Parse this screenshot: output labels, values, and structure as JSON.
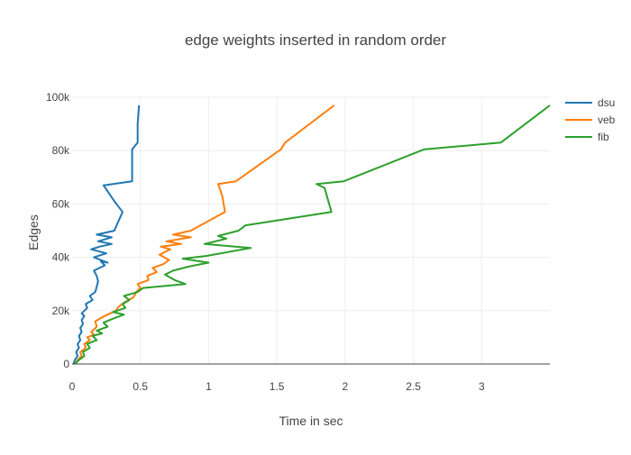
{
  "chart_data": {
    "type": "line",
    "title": "edge weights inserted in random order",
    "xlabel": "Time in sec",
    "ylabel": "Edges",
    "xlim": [
      0,
      3.5
    ],
    "ylim": [
      0,
      100000
    ],
    "x_ticks": [
      {
        "value": 0,
        "label": "0"
      },
      {
        "value": 0.5,
        "label": "0.5"
      },
      {
        "value": 1,
        "label": "1"
      },
      {
        "value": 1.5,
        "label": "1.5"
      },
      {
        "value": 2,
        "label": "2"
      },
      {
        "value": 2.5,
        "label": "2.5"
      },
      {
        "value": 3,
        "label": "3"
      }
    ],
    "y_ticks": [
      {
        "value": 0,
        "label": "0"
      },
      {
        "value": 20000,
        "label": "20k"
      },
      {
        "value": 40000,
        "label": "40k"
      },
      {
        "value": 60000,
        "label": "60k"
      },
      {
        "value": 80000,
        "label": "80k"
      },
      {
        "value": 100000,
        "label": "100k"
      }
    ],
    "grid": true,
    "legend_position": "top-right",
    "series": [
      {
        "name": "dsu",
        "color": "#1f77b4",
        "points": [
          [
            0.01,
            0
          ],
          [
            0.02,
            1500
          ],
          [
            0.04,
            3000
          ],
          [
            0.03,
            4500
          ],
          [
            0.05,
            6000
          ],
          [
            0.04,
            7500
          ],
          [
            0.06,
            9000
          ],
          [
            0.05,
            10500
          ],
          [
            0.07,
            12000
          ],
          [
            0.06,
            13500
          ],
          [
            0.08,
            15000
          ],
          [
            0.07,
            16500
          ],
          [
            0.09,
            18000
          ],
          [
            0.07,
            19000
          ],
          [
            0.11,
            21000
          ],
          [
            0.1,
            22500
          ],
          [
            0.15,
            24000
          ],
          [
            0.13,
            25500
          ],
          [
            0.17,
            27000
          ],
          [
            0.18,
            29000
          ],
          [
            0.19,
            31000
          ],
          [
            0.18,
            33000
          ],
          [
            0.16,
            35000
          ],
          [
            0.24,
            37000
          ],
          [
            0.21,
            38500
          ],
          [
            0.26,
            38000
          ],
          [
            0.16,
            40000
          ],
          [
            0.25,
            41500
          ],
          [
            0.14,
            43000
          ],
          [
            0.2,
            44000
          ],
          [
            0.29,
            45000
          ],
          [
            0.19,
            46000
          ],
          [
            0.29,
            47500
          ],
          [
            0.18,
            48500
          ],
          [
            0.31,
            50000
          ],
          [
            0.33,
            52500
          ],
          [
            0.37,
            57000
          ],
          [
            0.31,
            61000
          ],
          [
            0.25,
            65500
          ],
          [
            0.23,
            67000
          ],
          [
            0.44,
            68500
          ],
          [
            0.44,
            76000
          ],
          [
            0.44,
            80500
          ],
          [
            0.48,
            83000
          ],
          [
            0.48,
            90000
          ],
          [
            0.49,
            97000
          ]
        ]
      },
      {
        "name": "veb",
        "color": "#ff7f0e",
        "points": [
          [
            0.02,
            0
          ],
          [
            0.04,
            1500
          ],
          [
            0.07,
            3000
          ],
          [
            0.06,
            4500
          ],
          [
            0.1,
            6000
          ],
          [
            0.09,
            7500
          ],
          [
            0.13,
            9000
          ],
          [
            0.11,
            10000
          ],
          [
            0.16,
            11000
          ],
          [
            0.14,
            12000
          ],
          [
            0.18,
            14000
          ],
          [
            0.17,
            16000
          ],
          [
            0.22,
            17500
          ],
          [
            0.26,
            18500
          ],
          [
            0.32,
            20000
          ],
          [
            0.34,
            21500
          ],
          [
            0.38,
            23000
          ],
          [
            0.45,
            25000
          ],
          [
            0.47,
            27000
          ],
          [
            0.5,
            28500
          ],
          [
            0.48,
            30000
          ],
          [
            0.56,
            31500
          ],
          [
            0.55,
            33000
          ],
          [
            0.62,
            34500
          ],
          [
            0.59,
            36000
          ],
          [
            0.67,
            37500
          ],
          [
            0.71,
            39000
          ],
          [
            0.64,
            41000
          ],
          [
            0.72,
            43000
          ],
          [
            0.65,
            44000
          ],
          [
            0.8,
            45000
          ],
          [
            0.69,
            46000
          ],
          [
            0.87,
            47500
          ],
          [
            0.74,
            48500
          ],
          [
            0.87,
            50000
          ],
          [
            1.12,
            57000
          ],
          [
            1.1,
            63000
          ],
          [
            1.07,
            67500
          ],
          [
            1.2,
            68500
          ],
          [
            1.53,
            80500
          ],
          [
            1.56,
            83000
          ],
          [
            1.92,
            97000
          ]
        ]
      },
      {
        "name": "fib",
        "color": "#2ca02c",
        "points": [
          [
            0.02,
            0
          ],
          [
            0.05,
            1500
          ],
          [
            0.09,
            3000
          ],
          [
            0.08,
            4500
          ],
          [
            0.13,
            6000
          ],
          [
            0.11,
            7500
          ],
          [
            0.18,
            9000
          ],
          [
            0.15,
            10500
          ],
          [
            0.22,
            11500
          ],
          [
            0.18,
            12500
          ],
          [
            0.26,
            14000
          ],
          [
            0.23,
            15500
          ],
          [
            0.3,
            17000
          ],
          [
            0.38,
            18500
          ],
          [
            0.3,
            19500
          ],
          [
            0.39,
            21000
          ],
          [
            0.37,
            22500
          ],
          [
            0.42,
            24000
          ],
          [
            0.38,
            25500
          ],
          [
            0.48,
            27000
          ],
          [
            0.52,
            28500
          ],
          [
            0.83,
            30000
          ],
          [
            0.75,
            31500
          ],
          [
            0.68,
            33500
          ],
          [
            0.74,
            35000
          ],
          [
            0.85,
            36500
          ],
          [
            1.0,
            38000
          ],
          [
            0.81,
            39500
          ],
          [
            0.98,
            40500
          ],
          [
            1.31,
            43500
          ],
          [
            0.97,
            45000
          ],
          [
            1.13,
            47000
          ],
          [
            1.07,
            48000
          ],
          [
            1.22,
            50000
          ],
          [
            1.27,
            52000
          ],
          [
            1.9,
            57000
          ],
          [
            1.85,
            66000
          ],
          [
            1.79,
            67500
          ],
          [
            1.99,
            68500
          ],
          [
            2.58,
            80500
          ],
          [
            3.14,
            83000
          ],
          [
            3.5,
            97000
          ]
        ]
      }
    ]
  }
}
